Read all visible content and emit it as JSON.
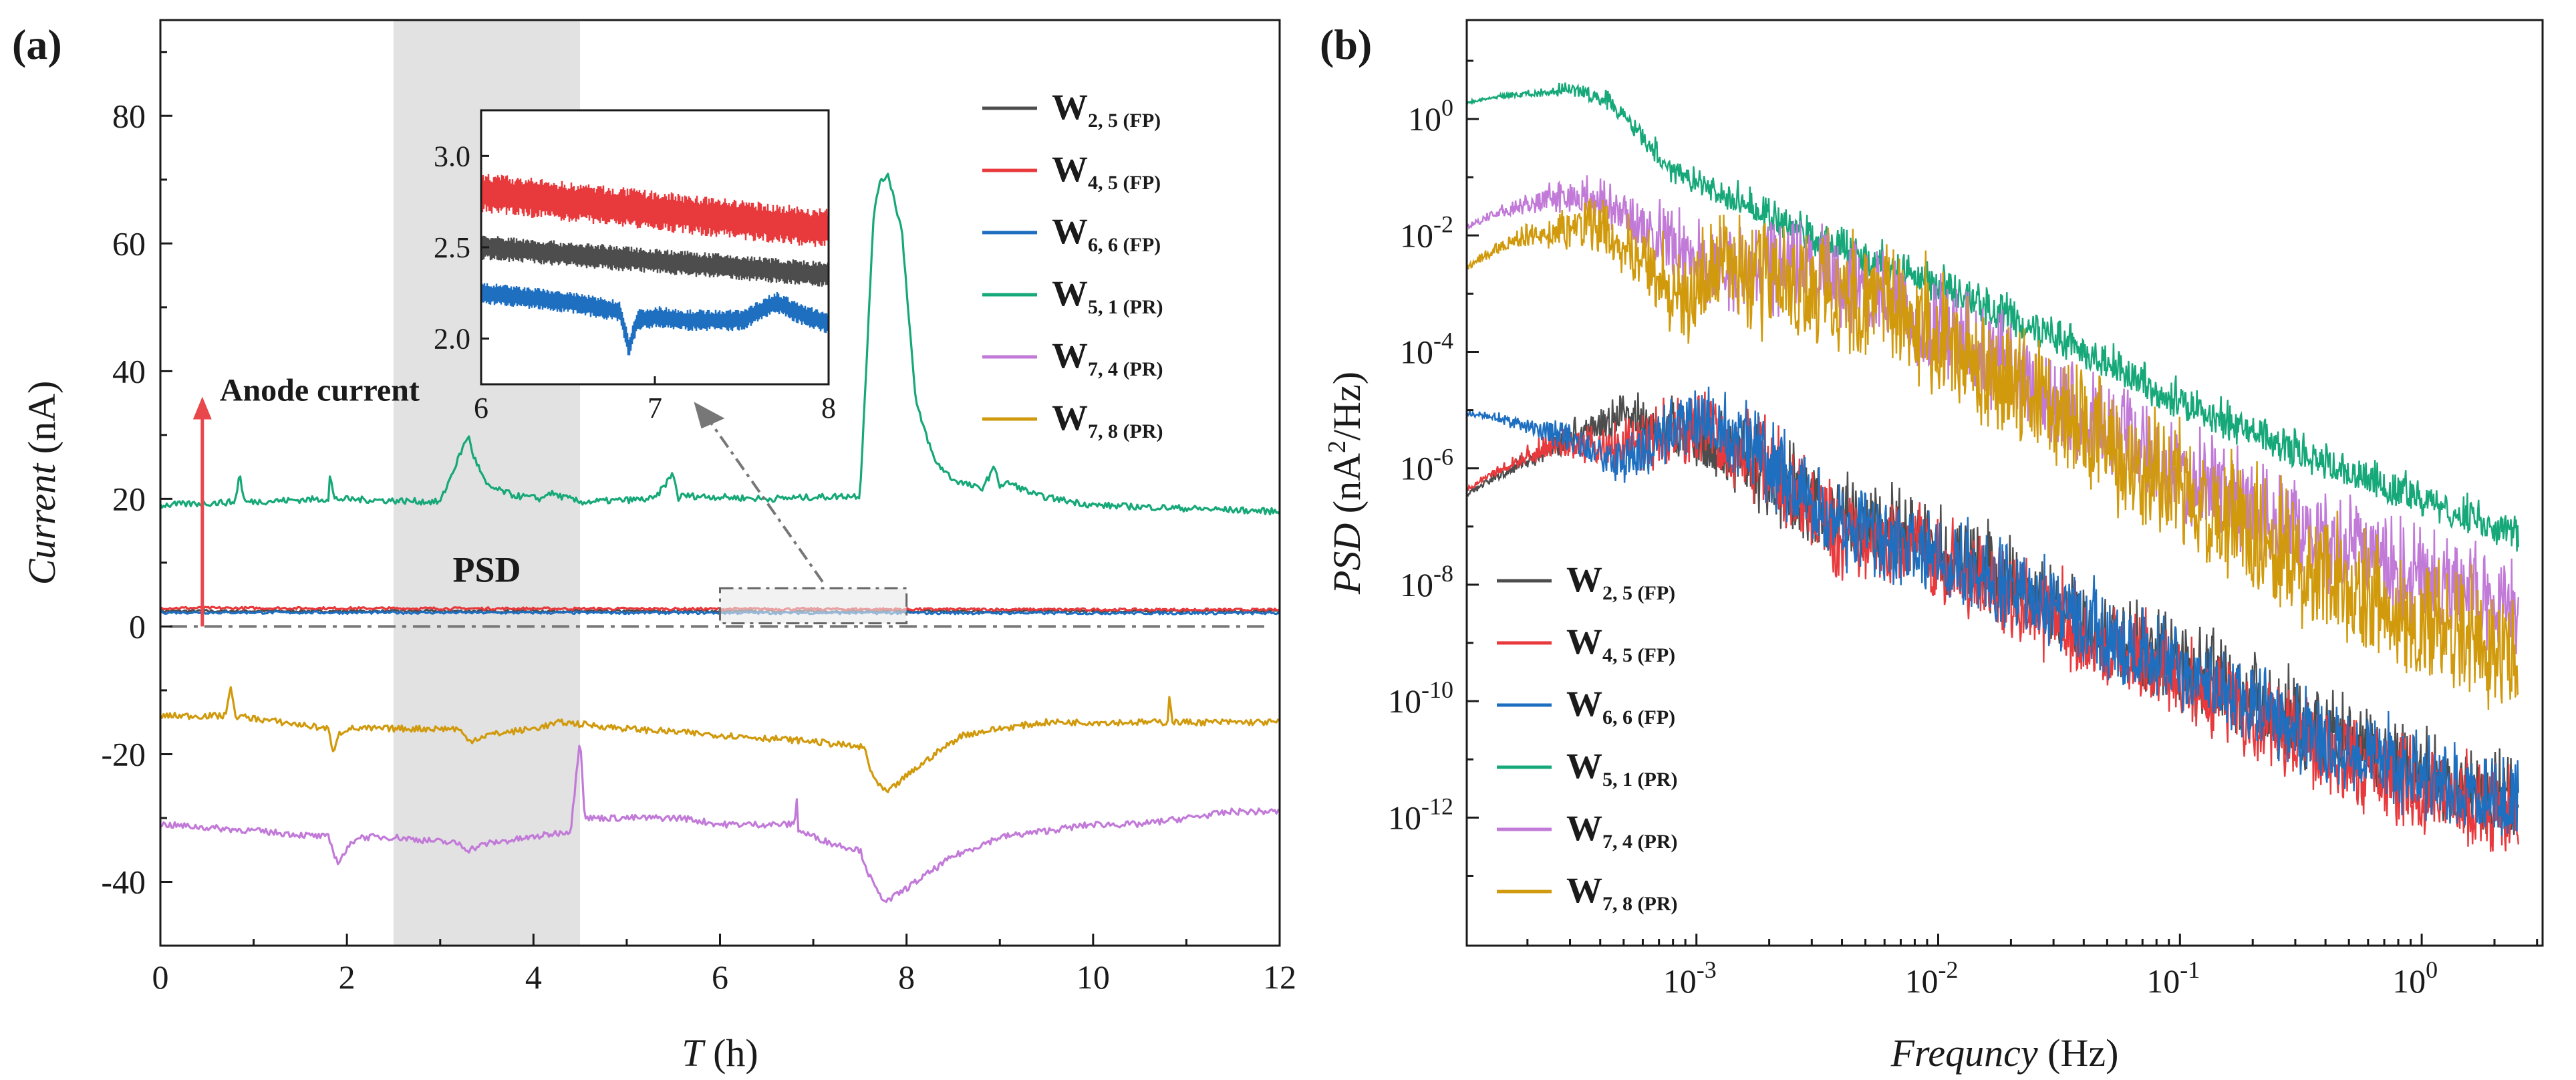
{
  "colors": {
    "W25": "#4d4d4d",
    "W45": "#e8393c",
    "W66": "#1f6fc1",
    "W51": "#16a878",
    "W74": "#c27ad8",
    "W78": "#d19a0c",
    "anode": "#e8474b",
    "shade": "#e2e2e2"
  },
  "chart_data": [
    {
      "panel": "(a)",
      "type": "line",
      "xlabel_italic": "T",
      "xlabel_unit": " (h)",
      "ylabel_italic": "Current",
      "ylabel_unit": " (nA)",
      "xlim": [
        0,
        12
      ],
      "ylim": [
        -50,
        95
      ],
      "xticks": [
        0,
        2,
        4,
        6,
        8,
        10,
        12
      ],
      "yticks": [
        -40,
        -20,
        0,
        20,
        40,
        60,
        80
      ],
      "shaded_region": {
        "x0": 2.5,
        "x1": 4.5,
        "label": "PSD"
      },
      "annotation": {
        "text": "Anode current",
        "x": 0.45,
        "y_from": 0,
        "y_to": 36
      },
      "zoom_box": {
        "x0": 6,
        "x1": 8,
        "y0": 0.5,
        "y1": 6
      },
      "series": [
        {
          "key": "W25",
          "name": "W",
          "sub": "2, 5",
          "tag": "(FP)",
          "x": [
            0,
            12
          ],
          "y": [
            2.4,
            2.4
          ]
        },
        {
          "key": "W45",
          "name": "W",
          "sub": "4, 5",
          "tag": "(FP)",
          "x": [
            0,
            12
          ],
          "y": [
            2.9,
            2.6
          ]
        },
        {
          "key": "W66",
          "name": "W",
          "sub": "6, 6",
          "tag": "(FP)",
          "x": [
            0,
            12
          ],
          "y": [
            2.2,
            2.1
          ]
        },
        {
          "key": "W51",
          "name": "W",
          "sub": "5, 1",
          "tag": "(PR)",
          "x": [
            0,
            0.8,
            0.85,
            0.9,
            1.8,
            1.82,
            1.86,
            3.0,
            3.3,
            3.35,
            3.5,
            3.8,
            4.1,
            4.15,
            4.5,
            5.3,
            5.5,
            5.55,
            5.6,
            6.5,
            7.5,
            7.65,
            7.7,
            7.8,
            7.95,
            8.1,
            8.3,
            8.5,
            8.8,
            8.95,
            9.0,
            9.1,
            9.4,
            10.0,
            11.0,
            12.0
          ],
          "y": [
            19,
            19.5,
            24,
            19.5,
            20,
            24,
            20,
            19.5,
            30,
            27,
            22,
            20.5,
            20,
            21,
            19.5,
            20,
            24,
            20,
            20.5,
            20,
            20.5,
            65,
            69,
            71,
            62,
            35,
            26,
            23,
            21.5,
            25,
            22,
            22.5,
            20.5,
            19,
            18.5,
            18
          ]
        },
        {
          "key": "W74",
          "name": "W",
          "sub": "7, 4",
          "tag": "(PR)",
          "x": [
            0,
            1.0,
            1.8,
            1.9,
            2.1,
            2.5,
            3.2,
            3.3,
            3.5,
            4.0,
            4.4,
            4.5,
            4.55,
            5.0,
            5.6,
            6.0,
            6.8,
            6.82,
            6.84,
            7.2,
            7.5,
            7.6,
            7.7,
            7.8,
            7.9,
            8.2,
            8.5,
            9.0,
            9.5,
            10.0,
            10.5,
            11.0,
            11.5,
            12.0
          ],
          "y": [
            -31,
            -32,
            -33,
            -37,
            -33,
            -33,
            -34,
            -35,
            -34,
            -33,
            -32,
            -17,
            -30,
            -30,
            -30,
            -31,
            -31,
            -26,
            -32,
            -34,
            -35,
            -39,
            -42,
            -43,
            -42,
            -39,
            -36,
            -33,
            -32,
            -31,
            -31,
            -30,
            -29,
            -29
          ]
        },
        {
          "key": "W78",
          "name": "W",
          "sub": "7, 8",
          "tag": "(PR)",
          "x": [
            0,
            0.7,
            0.75,
            0.8,
            1.8,
            1.85,
            1.9,
            2.0,
            3.2,
            3.3,
            3.5,
            4.0,
            4.3,
            5.0,
            6.0,
            7.0,
            7.55,
            7.6,
            7.7,
            7.8,
            7.95,
            8.3,
            8.6,
            9.0,
            9.5,
            10.0,
            10.8,
            10.82,
            10.85,
            11.0,
            12.0
          ],
          "y": [
            -14,
            -14,
            -9,
            -14,
            -16,
            -20,
            -17,
            -16,
            -16,
            -18,
            -17,
            -16,
            -15,
            -16,
            -17,
            -18,
            -19,
            -22,
            -25,
            -26,
            -24,
            -20,
            -17,
            -16,
            -15,
            -15,
            -15,
            -10,
            -15,
            -15,
            -15
          ]
        }
      ],
      "inset": {
        "xlim": [
          6,
          8
        ],
        "ylim": [
          1.75,
          3.25
        ],
        "xticks": [
          6,
          7,
          8
        ],
        "yticks": [
          2.0,
          2.5,
          3.0
        ],
        "series": [
          {
            "key": "W45",
            "x": [
              6,
              8
            ],
            "y": [
              2.8,
              2.6
            ],
            "band": 0.11
          },
          {
            "key": "W25",
            "x": [
              6,
              8
            ],
            "y": [
              2.5,
              2.35
            ],
            "band": 0.07
          },
          {
            "key": "W66",
            "x": [
              6,
              6.5,
              6.8,
              6.85,
              6.9,
              7.0,
              7.2,
              7.5,
              7.7,
              7.8,
              8.0
            ],
            "y": [
              2.25,
              2.2,
              2.15,
              1.95,
              2.1,
              2.12,
              2.1,
              2.1,
              2.2,
              2.15,
              2.08
            ],
            "band": 0.06
          }
        ]
      }
    },
    {
      "panel": "(b)",
      "type": "line",
      "xscale": "log",
      "yscale": "log",
      "xlabel_italic": "Frequncy",
      "xlabel_unit": " (Hz)",
      "ylabel_italic": "PSD",
      "ylabel_unit": " (nA2/Hz)",
      "xlim_log10": [
        -3.95,
        0.5
      ],
      "ylim_log10": [
        -14.2,
        1.7
      ],
      "xticks_log10": [
        -3,
        -2,
        -1,
        0
      ],
      "xtick_labels": [
        "10-3",
        "10-2",
        "10-1",
        "100"
      ],
      "yticks_log10": [
        0,
        -2,
        -4,
        -6,
        -8,
        -10,
        -12
      ],
      "ytick_labels": [
        "100",
        "10-2",
        "10-4",
        "10-6",
        "10-8",
        "10-10",
        "10-12"
      ],
      "series": [
        {
          "key": "W51",
          "log10_f": [
            -3.95,
            -3.7,
            -3.5,
            -3.35,
            -3.1,
            -2.8,
            -2.5,
            -2.0,
            -1.5,
            -1.0,
            -0.5,
            0.0,
            0.4
          ],
          "log10_psd": [
            0.3,
            0.5,
            0.6,
            0.4,
            -0.7,
            -1.2,
            -1.8,
            -2.6,
            -3.5,
            -4.6,
            -5.5,
            -6.3,
            -6.9
          ],
          "band": 0.6
        },
        {
          "key": "W74",
          "log10_f": [
            -3.95,
            -3.7,
            -3.45,
            -3.2,
            -2.9,
            -2.6,
            -2.3,
            -2.0,
            -1.5,
            -1.0,
            -0.5,
            0.0,
            0.4
          ],
          "log10_psd": [
            -1.8,
            -1.3,
            -1.0,
            -1.5,
            -2.0,
            -1.8,
            -2.2,
            -2.9,
            -4.2,
            -5.4,
            -6.4,
            -7.3,
            -7.8
          ],
          "band": 1.6
        },
        {
          "key": "W78",
          "log10_f": [
            -3.95,
            -3.7,
            -3.4,
            -3.2,
            -3.05,
            -2.9,
            -2.6,
            -2.2,
            -1.8,
            -1.4,
            -1.0,
            -0.5,
            0.0,
            0.4
          ],
          "log10_psd": [
            -2.5,
            -1.8,
            -1.4,
            -2.0,
            -2.5,
            -1.7,
            -2.0,
            -2.4,
            -3.5,
            -4.5,
            -5.6,
            -6.8,
            -7.8,
            -8.4
          ],
          "band": 2.0
        },
        {
          "key": "W25",
          "log10_f": [
            -3.95,
            -3.6,
            -3.3,
            -3.0,
            -2.7,
            -2.4,
            -2.0,
            -1.5,
            -1.0,
            -0.5,
            0.0,
            0.4
          ],
          "log10_psd": [
            -6.4,
            -5.5,
            -4.7,
            -5.0,
            -5.6,
            -6.3,
            -6.8,
            -7.8,
            -8.8,
            -9.8,
            -10.7,
            -11.2
          ],
          "band": 1.4
        },
        {
          "key": "W45",
          "log10_f": [
            -3.95,
            -3.6,
            -3.3,
            -3.0,
            -2.7,
            -2.4,
            -2.0,
            -1.5,
            -1.0,
            -0.5,
            0.0,
            0.4
          ],
          "log10_psd": [
            -6.3,
            -5.4,
            -5.3,
            -4.8,
            -5.3,
            -6.5,
            -6.9,
            -8.0,
            -9.0,
            -10.0,
            -10.9,
            -11.3
          ],
          "band": 1.5
        },
        {
          "key": "W66",
          "log10_f": [
            -3.95,
            -3.6,
            -3.3,
            -3.0,
            -2.8,
            -2.4,
            -2.0,
            -1.5,
            -1.0,
            -0.5,
            0.0,
            0.4
          ],
          "log10_psd": [
            -5.0,
            -5.2,
            -5.6,
            -4.6,
            -5.0,
            -6.4,
            -6.9,
            -7.9,
            -8.9,
            -9.9,
            -10.7,
            -11.1
          ],
          "band": 1.4
        }
      ]
    }
  ],
  "legend": {
    "a": [
      {
        "key": "W25",
        "name": "W",
        "sub": "2, 5",
        "tag": "(FP)"
      },
      {
        "key": "W45",
        "name": "W",
        "sub": "4, 5",
        "tag": "(FP)"
      },
      {
        "key": "W66",
        "name": "W",
        "sub": "6, 6",
        "tag": "(FP)"
      },
      {
        "key": "W51",
        "name": "W",
        "sub": "5, 1",
        "tag": "(PR)"
      },
      {
        "key": "W74",
        "name": "W",
        "sub": "7, 4",
        "tag": "(PR)"
      },
      {
        "key": "W78",
        "name": "W",
        "sub": "7, 8",
        "tag": "(PR)"
      }
    ],
    "b": [
      {
        "key": "W25",
        "name": "W",
        "sub": "2, 5",
        "tag": "(FP)"
      },
      {
        "key": "W45",
        "name": "W",
        "sub": "4, 5",
        "tag": "(FP)"
      },
      {
        "key": "W66",
        "name": "W",
        "sub": "6, 6",
        "tag": "(FP)"
      },
      {
        "key": "W51",
        "name": "W",
        "sub": "5, 1",
        "tag": "(PR)"
      },
      {
        "key": "W74",
        "name": "W",
        "sub": "7, 4",
        "tag": "(PR)"
      },
      {
        "key": "W78",
        "name": "W",
        "sub": "7, 8",
        "tag": "(PR)"
      }
    ]
  }
}
